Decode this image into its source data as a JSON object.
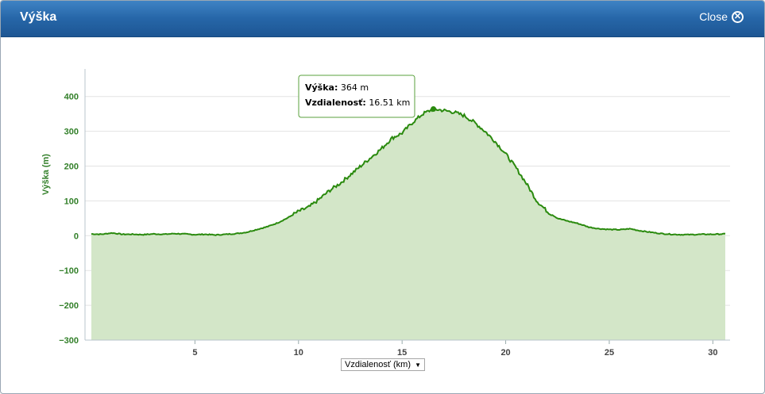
{
  "window": {
    "title": "Výška",
    "close_label": "Close"
  },
  "x_axis_selector": {
    "selected": "Vzdialenosť (km)"
  },
  "tooltip": {
    "label1": "Výška:",
    "value1": "364 m",
    "label2": "Vzdialenosť:",
    "value2": "16.51 km",
    "x": 16.51,
    "y": 364
  },
  "colors": {
    "line": "#2a8a0e",
    "fill": "#d3e6c8",
    "tick_y": "#33802a",
    "titlebar": "#2666a8"
  },
  "chart_data": {
    "type": "area",
    "title": "",
    "xlabel": "Vzdialenosť (km)",
    "ylabel": "Výška (m)",
    "xlim": [
      0,
      30.6
    ],
    "ylim": [
      -300,
      470
    ],
    "x_ticks": [
      5,
      10,
      15,
      20,
      25,
      30
    ],
    "y_ticks": [
      400,
      300,
      200,
      100,
      0,
      -100,
      -200,
      -300
    ],
    "y_tick_labels": [
      "400",
      "300",
      "200",
      "100",
      "0",
      "−100",
      "−200",
      "−300"
    ],
    "grid": true,
    "legend": "none",
    "series": [
      {
        "x": [
          0,
          0.5,
          1,
          1.5,
          2,
          2.5,
          3,
          3.5,
          4,
          4.5,
          5,
          5.5,
          6,
          6.5,
          7,
          7.5,
          8,
          8.5,
          9,
          9.5,
          10,
          10.5,
          11,
          11.5,
          12,
          12.5,
          13,
          13.5,
          14,
          14.5,
          15,
          15.5,
          16,
          16.5,
          17,
          17.5,
          18,
          18.5,
          19,
          19.5,
          20,
          20.5,
          21,
          21.5,
          22,
          22.5,
          23,
          23.5,
          24,
          24.5,
          25,
          25.5,
          26,
          26.5,
          27,
          27.5,
          28,
          28.5,
          29,
          29.5,
          30,
          30.6
        ],
        "y": [
          5,
          4,
          8,
          4,
          4,
          3,
          5,
          4,
          6,
          5,
          3,
          4,
          2,
          4,
          6,
          10,
          18,
          26,
          37,
          52,
          70,
          82,
          105,
          130,
          150,
          175,
          200,
          225,
          250,
          280,
          295,
          325,
          350,
          364,
          360,
          355,
          345,
          325,
          300,
          270,
          235,
          195,
          150,
          100,
          70,
          50,
          42,
          35,
          25,
          20,
          18,
          17,
          20,
          14,
          10,
          6,
          4,
          3,
          3,
          4,
          4,
          5
        ]
      }
    ]
  }
}
